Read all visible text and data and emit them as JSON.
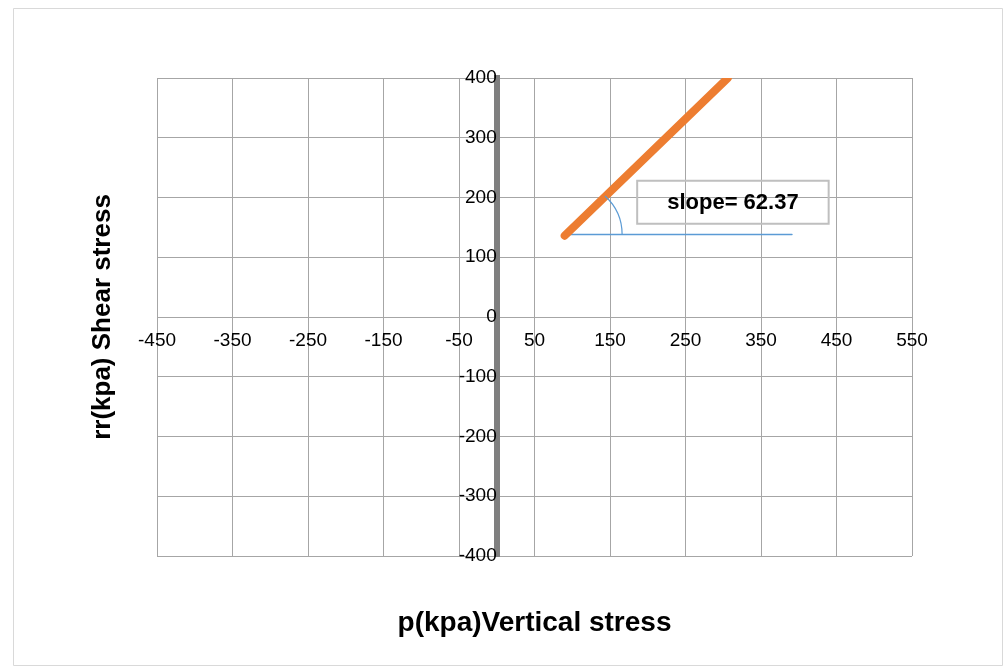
{
  "chart_data": {
    "type": "line",
    "xlabel": "p(kpa)Vertical stress",
    "ylabel": "rr(kpa) Shear stress",
    "xlim": [
      -450,
      550
    ],
    "xticks": [
      -450,
      -350,
      -250,
      -150,
      -50,
      50,
      150,
      250,
      350,
      450,
      550
    ],
    "ylim": [
      -400,
      400
    ],
    "yticks": [
      -400,
      -300,
      -200,
      -100,
      0,
      100,
      200,
      300,
      400
    ],
    "grid": true,
    "legend": false,
    "marker": "none",
    "line_style": "solid",
    "series": [
      {
        "x": [
          90,
          306
        ],
        "values": [
          136,
          400
        ],
        "color": "#ed7d31"
      },
      {
        "x": [
          97,
          391
        ],
        "values": [
          138,
          138
        ],
        "color": "#5b9bd5"
      }
    ],
    "annotations": [
      "slope= 62.37"
    ]
  }
}
